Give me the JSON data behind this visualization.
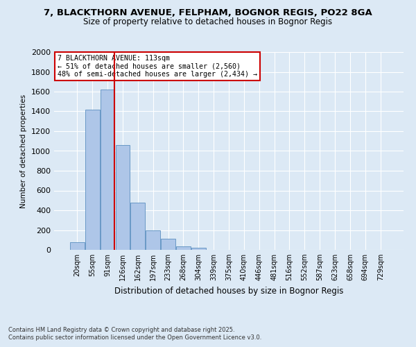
{
  "title1": "7, BLACKTHORN AVENUE, FELPHAM, BOGNOR REGIS, PO22 8GA",
  "title2": "Size of property relative to detached houses in Bognor Regis",
  "xlabel": "Distribution of detached houses by size in Bognor Regis",
  "ylabel": "Number of detached properties",
  "categories": [
    "20sqm",
    "55sqm",
    "91sqm",
    "126sqm",
    "162sqm",
    "197sqm",
    "233sqm",
    "268sqm",
    "304sqm",
    "339sqm",
    "375sqm",
    "410sqm",
    "446sqm",
    "481sqm",
    "516sqm",
    "552sqm",
    "587sqm",
    "623sqm",
    "658sqm",
    "694sqm",
    "729sqm"
  ],
  "values": [
    80,
    1420,
    1620,
    1060,
    480,
    200,
    110,
    35,
    20,
    0,
    0,
    0,
    0,
    0,
    0,
    0,
    0,
    0,
    0,
    0,
    0
  ],
  "bar_color": "#aec6e8",
  "bar_edge_color": "#5a8fc0",
  "vline_color": "#cc0000",
  "annotation_text": "7 BLACKTHORN AVENUE: 113sqm\n← 51% of detached houses are smaller (2,560)\n48% of semi-detached houses are larger (2,434) →",
  "annotation_box_color": "#cc0000",
  "ylim": [
    0,
    2000
  ],
  "yticks": [
    0,
    200,
    400,
    600,
    800,
    1000,
    1200,
    1400,
    1600,
    1800,
    2000
  ],
  "background_color": "#dce9f5",
  "plot_bg_color": "#dce9f5",
  "footer1": "Contains HM Land Registry data © Crown copyright and database right 2025.",
  "footer2": "Contains public sector information licensed under the Open Government Licence v3.0.",
  "grid_color": "#ffffff",
  "title_fontsize": 9.5,
  "subtitle_fontsize": 8.5
}
